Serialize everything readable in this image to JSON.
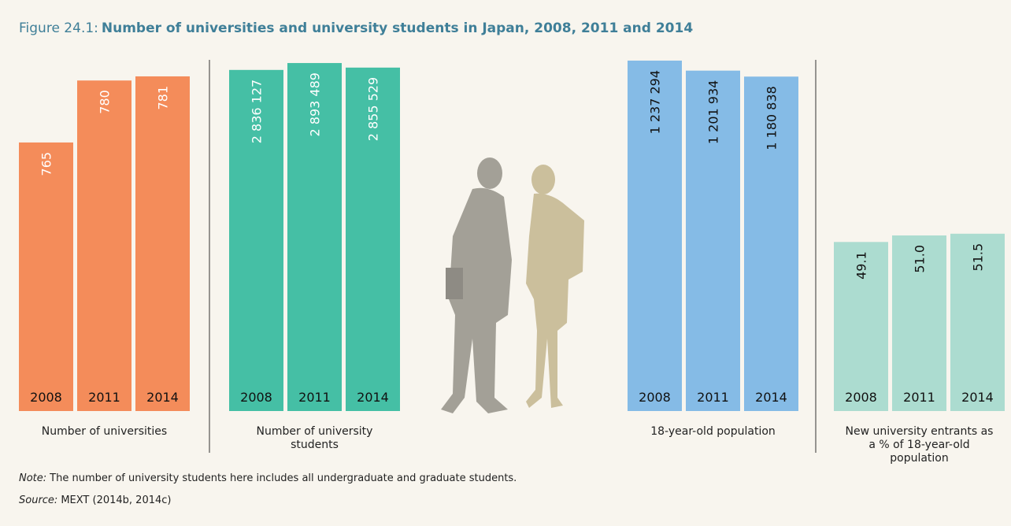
{
  "figure": {
    "label": "Figure 24.1:",
    "title": "Number of universities and university students in Japan, 2008, 2011 and 2014"
  },
  "chart_data": [
    {
      "type": "bar",
      "x_label": "Number of universities",
      "categories": [
        "2008",
        "2011",
        "2014"
      ],
      "values": [
        765,
        780,
        781
      ],
      "color": "#f48c5a",
      "label_color": "#ffffff",
      "ylim": [
        700,
        785
      ]
    },
    {
      "type": "bar",
      "x_label": "Number of university students",
      "categories": [
        "2008",
        "2011",
        "2014"
      ],
      "values": [
        2836127,
        2893489,
        2855529
      ],
      "value_labels": [
        "2 836 127",
        "2 893 489",
        "2 855 529"
      ],
      "color": "#45bfa5",
      "label_color": "#ffffff",
      "ylim": [
        0,
        2920000
      ]
    },
    {
      "type": "bar",
      "x_label": "18-year-old population",
      "categories": [
        "2008",
        "2011",
        "2014"
      ],
      "values": [
        1237294,
        1201934,
        1180838
      ],
      "value_labels": [
        "1 237 294",
        "1 201 934",
        "1 180 838"
      ],
      "color": "#85bbe6",
      "label_color": "#111111",
      "ylim": [
        0,
        1240000
      ]
    },
    {
      "type": "bar",
      "x_label": "New university entrants as a % of 18-year-old population",
      "categories": [
        "2008",
        "2011",
        "2014"
      ],
      "values": [
        49.1,
        51.0,
        51.5
      ],
      "value_labels": [
        "49.1",
        "51.0",
        "51.5"
      ],
      "color": "#acdcd0",
      "label_color": "#111111",
      "ylim": [
        0,
        102
      ]
    }
  ],
  "note": {
    "label": "Note:",
    "text": "The number of university students here includes all undergraduate and graduate students."
  },
  "source": {
    "label": "Source:",
    "text": "MEXT (2014b, 2014c)"
  }
}
